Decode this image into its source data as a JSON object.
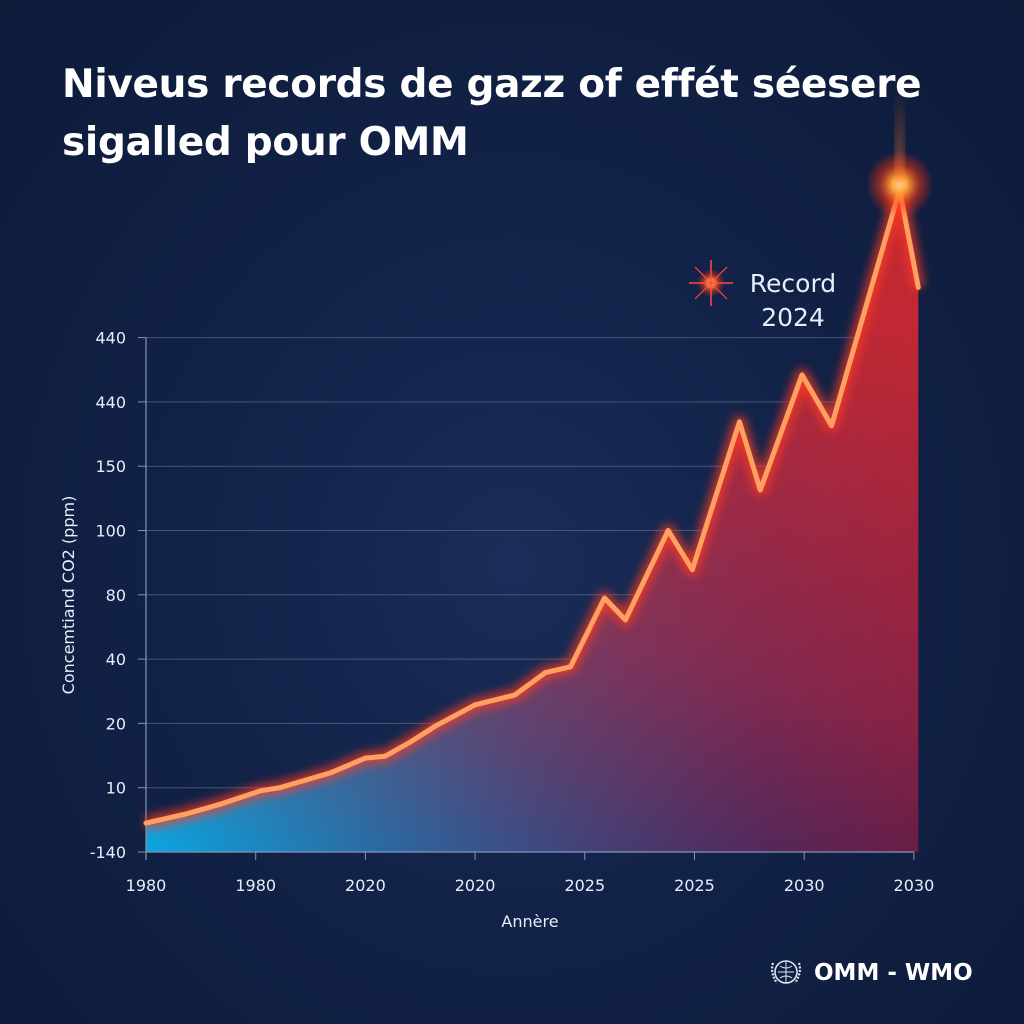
{
  "title": "Niveus records de gazz of effét séesere sigalled pour OMM",
  "chart_data": {
    "type": "area",
    "title": "Niveus records de gazz of effét séesere sigalled pour OMM",
    "xlabel": "Annère",
    "ylabel": "Concemtiand CO2 (ppm)",
    "x_tick_labels": [
      "1980",
      "1980",
      "2020",
      "2020",
      "2025",
      "2025",
      "2030",
      "2030"
    ],
    "y_tick_labels": [
      "-140",
      "10",
      "20",
      "40",
      "80",
      "100",
      "150",
      "440",
      "440"
    ],
    "grid": "horizontal",
    "note": "Tick labels are non-monotonic; points are given in tick-index units (x = position along x ticks, y = position along y ticks from bottom).",
    "series": [
      {
        "points": [
          [
            0,
            0.45
          ],
          [
            0.36,
            0.59
          ],
          [
            0.69,
            0.75
          ],
          [
            1.04,
            0.95
          ],
          [
            1.22,
            1.0
          ],
          [
            1.4,
            1.09
          ],
          [
            1.68,
            1.23
          ],
          [
            2.0,
            1.46
          ],
          [
            2.18,
            1.49
          ],
          [
            2.41,
            1.71
          ],
          [
            2.63,
            1.95
          ],
          [
            3.0,
            2.29
          ],
          [
            3.36,
            2.44
          ],
          [
            3.64,
            2.79
          ],
          [
            3.87,
            2.88
          ],
          [
            4.18,
            3.95
          ],
          [
            4.37,
            3.61
          ],
          [
            4.76,
            5.0
          ],
          [
            4.98,
            4.39
          ],
          [
            5.41,
            6.69
          ],
          [
            5.6,
            5.63
          ],
          [
            5.98,
            7.42
          ],
          [
            6.25,
            6.63
          ],
          [
            6.87,
            10.3
          ],
          [
            7.04,
            8.78
          ]
        ]
      }
    ],
    "annotation": {
      "line1": "Record",
      "line2": "2024"
    },
    "colors": {
      "line": "#ffa060",
      "glow": "#ff3a20",
      "fill_low": "#0aa0dc",
      "fill_high": "#c0202a",
      "grid": "#5a6a90",
      "background": "#122248"
    }
  },
  "logo": {
    "text": "OMM - WMO",
    "icon": "un-emblem-icon"
  }
}
